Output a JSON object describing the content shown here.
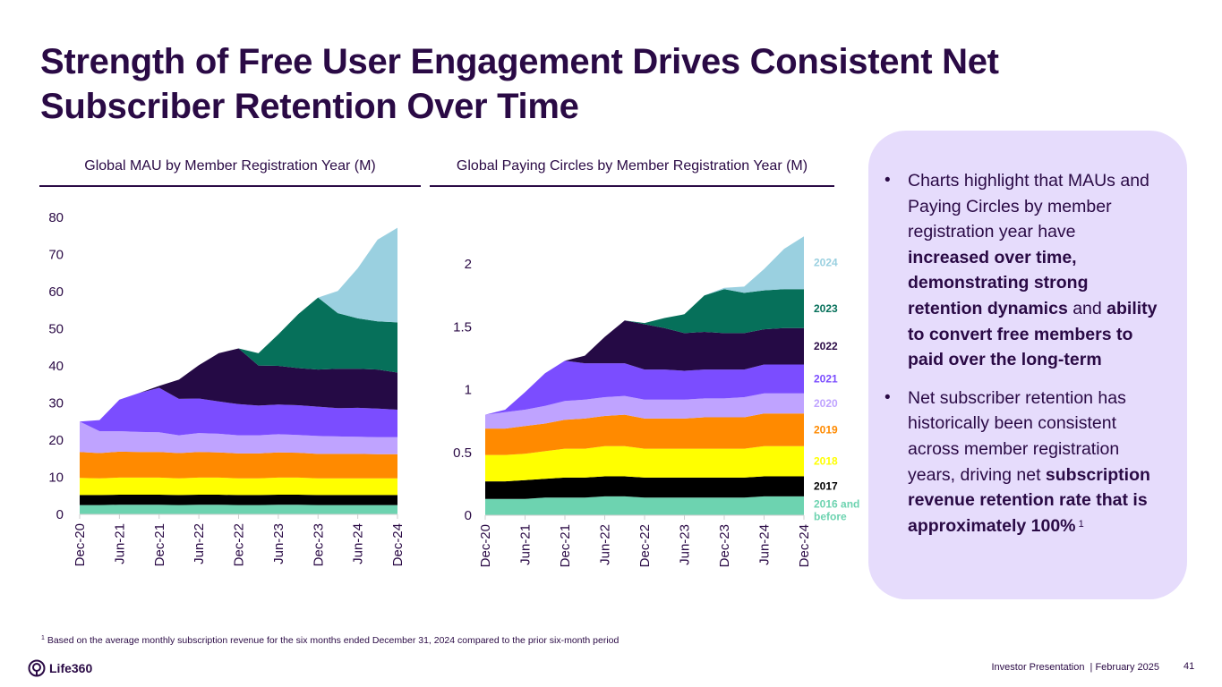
{
  "title": "Strength of Free User Engagement Drives Consistent Net Subscriber Retention Over Time",
  "side_panel": {
    "bullets": [
      [
        {
          "text": "Charts highlight that MAUs and Paying Circles by member registration year have ",
          "bold": false
        },
        {
          "text": "increased over time, demonstrating strong retention dynamics",
          "bold": true
        },
        {
          "text": " and ",
          "bold": false
        },
        {
          "text": "ability to convert free members to paid over the long-term",
          "bold": true
        }
      ],
      [
        {
          "text": "Net subscriber retention has historically been consistent across member registration years, driving net ",
          "bold": false
        },
        {
          "text": "subscription revenue retention rate that is approximately 100%",
          "bold": true
        },
        {
          "text": "1",
          "sup": true
        }
      ]
    ]
  },
  "footnote": {
    "marker": "1",
    "text": "Based on the average monthly subscription revenue for the six months ended December 31, 2024 compared to the prior six-month period"
  },
  "logo": {
    "text": "Life360",
    "icon": "life360-logo-icon"
  },
  "footer": {
    "text": "Investor Presentation  | February 2025",
    "page": "41"
  },
  "colors": {
    "2016 and before": "#6dd3b0",
    "2017": "#000000",
    "2018": "#ffff00",
    "2019": "#ff8a00",
    "2020": "#bfa3ff",
    "2021": "#7b4dff",
    "2022": "#250a45",
    "2023": "#06705a",
    "2024": "#9ad0e0",
    "primary": "#2a0a45",
    "panel": "#e6dcfc"
  },
  "chart_data": [
    {
      "type": "area",
      "stacked": true,
      "title": "Global MAU by Member Registration Year (M)",
      "xlabel": "",
      "ylabel": "",
      "ylim": [
        0,
        80
      ],
      "yticks": [
        0,
        10,
        20,
        30,
        40,
        50,
        60,
        70,
        80
      ],
      "x": [
        "Dec-20",
        "Mar-21",
        "Jun-21",
        "Sep-21",
        "Dec-21",
        "Mar-22",
        "Jun-22",
        "Sep-22",
        "Dec-22",
        "Mar-23",
        "Jun-23",
        "Sep-23",
        "Dec-23",
        "Mar-24",
        "Jun-24",
        "Sep-24",
        "Dec-24"
      ],
      "xticks": [
        "Dec-20",
        "Jun-21",
        "Dec-21",
        "Jun-22",
        "Dec-22",
        "Jun-23",
        "Dec-23",
        "Jun-24",
        "Dec-24"
      ],
      "legend": "none",
      "series": [
        {
          "name": "2016 and before",
          "values": [
            2.5,
            2.5,
            2.6,
            2.6,
            2.6,
            2.5,
            2.6,
            2.6,
            2.5,
            2.5,
            2.6,
            2.6,
            2.5,
            2.5,
            2.5,
            2.5,
            2.5
          ]
        },
        {
          "name": "2017",
          "values": [
            2.7,
            2.7,
            2.7,
            2.7,
            2.7,
            2.7,
            2.7,
            2.7,
            2.7,
            2.7,
            2.7,
            2.7,
            2.7,
            2.7,
            2.7,
            2.7,
            2.7
          ]
        },
        {
          "name": "2018",
          "values": [
            4.6,
            4.5,
            4.6,
            4.6,
            4.6,
            4.5,
            4.6,
            4.6,
            4.5,
            4.5,
            4.6,
            4.6,
            4.5,
            4.5,
            4.5,
            4.5,
            4.5
          ]
        },
        {
          "name": "2019",
          "values": [
            7.0,
            6.8,
            7.0,
            6.9,
            6.9,
            6.8,
            6.9,
            6.8,
            6.7,
            6.7,
            6.8,
            6.7,
            6.6,
            6.6,
            6.6,
            6.5,
            6.5
          ]
        },
        {
          "name": "2020",
          "values": [
            8.2,
            5.9,
            5.5,
            5.4,
            5.3,
            4.8,
            5.1,
            5.0,
            4.9,
            4.9,
            4.9,
            4.8,
            4.8,
            4.7,
            4.6,
            4.6,
            4.6
          ]
        },
        {
          "name": "2021",
          "values": [
            0,
            3.0,
            8.5,
            10.5,
            12.0,
            9.8,
            9.3,
            8.7,
            8.4,
            8.0,
            8.0,
            8.0,
            7.9,
            7.6,
            7.8,
            7.7,
            7.4
          ]
        },
        {
          "name": "2022",
          "values": [
            0,
            0,
            0,
            0,
            0.5,
            5.2,
            9.0,
            13.0,
            15.0,
            10.8,
            10.4,
            10.0,
            10.0,
            10.6,
            10.5,
            10.5,
            10.0
          ]
        },
        {
          "name": "2023",
          "values": [
            0,
            0,
            0,
            0,
            0,
            0,
            0,
            0,
            0,
            3.3,
            8.5,
            14.5,
            19.4,
            15.0,
            13.6,
            13.0,
            13.5
          ]
        },
        {
          "name": "2024",
          "values": [
            0,
            0,
            0,
            0,
            0,
            0,
            0,
            0,
            0,
            0,
            0,
            0,
            0,
            6.0,
            13.5,
            22.0,
            25.5
          ]
        }
      ]
    },
    {
      "type": "area",
      "stacked": true,
      "title": "Global Paying Circles by Member Registration Year (M)",
      "xlabel": "",
      "ylabel": "",
      "ylim": [
        0,
        2.25
      ],
      "yticks": [
        0,
        0.5,
        1,
        1.5,
        2
      ],
      "x": [
        "Dec-20",
        "Mar-21",
        "Jun-21",
        "Sep-21",
        "Dec-21",
        "Mar-22",
        "Jun-22",
        "Sep-22",
        "Dec-22",
        "Mar-23",
        "Jun-23",
        "Sep-23",
        "Dec-23",
        "Mar-24",
        "Jun-24",
        "Sep-24",
        "Dec-24"
      ],
      "xticks": [
        "Dec-20",
        "Jun-21",
        "Dec-21",
        "Jun-22",
        "Dec-22",
        "Jun-23",
        "Dec-23",
        "Jun-24",
        "Dec-24"
      ],
      "legend": "right",
      "series": [
        {
          "name": "2016 and before",
          "values": [
            0.13,
            0.13,
            0.13,
            0.14,
            0.14,
            0.14,
            0.15,
            0.15,
            0.14,
            0.14,
            0.14,
            0.14,
            0.14,
            0.14,
            0.15,
            0.15,
            0.15
          ]
        },
        {
          "name": "2017",
          "values": [
            0.14,
            0.14,
            0.15,
            0.15,
            0.16,
            0.16,
            0.16,
            0.16,
            0.16,
            0.16,
            0.16,
            0.16,
            0.16,
            0.16,
            0.16,
            0.16,
            0.16
          ]
        },
        {
          "name": "2018",
          "values": [
            0.21,
            0.21,
            0.21,
            0.22,
            0.23,
            0.23,
            0.24,
            0.24,
            0.23,
            0.23,
            0.23,
            0.23,
            0.23,
            0.23,
            0.24,
            0.24,
            0.24
          ]
        },
        {
          "name": "2019",
          "values": [
            0.21,
            0.21,
            0.22,
            0.22,
            0.23,
            0.24,
            0.24,
            0.25,
            0.24,
            0.24,
            0.24,
            0.25,
            0.25,
            0.25,
            0.26,
            0.26,
            0.26
          ]
        },
        {
          "name": "2020",
          "values": [
            0.11,
            0.13,
            0.13,
            0.14,
            0.15,
            0.15,
            0.15,
            0.15,
            0.15,
            0.15,
            0.15,
            0.15,
            0.15,
            0.16,
            0.16,
            0.16,
            0.16
          ]
        },
        {
          "name": "2021",
          "values": [
            0,
            0.02,
            0.14,
            0.26,
            0.32,
            0.29,
            0.27,
            0.26,
            0.24,
            0.24,
            0.23,
            0.23,
            0.23,
            0.22,
            0.23,
            0.23,
            0.23
          ]
        },
        {
          "name": "2022",
          "values": [
            0,
            0,
            0,
            0,
            0,
            0.06,
            0.21,
            0.34,
            0.36,
            0.33,
            0.3,
            0.3,
            0.29,
            0.29,
            0.28,
            0.29,
            0.29
          ]
        },
        {
          "name": "2023",
          "values": [
            0,
            0,
            0,
            0,
            0,
            0,
            0,
            0,
            0.01,
            0.08,
            0.15,
            0.29,
            0.35,
            0.32,
            0.31,
            0.31,
            0.31
          ]
        },
        {
          "name": "2024",
          "values": [
            0,
            0,
            0,
            0,
            0,
            0,
            0,
            0,
            0,
            0,
            0,
            0,
            0.01,
            0.05,
            0.17,
            0.32,
            0.42
          ]
        }
      ]
    }
  ]
}
